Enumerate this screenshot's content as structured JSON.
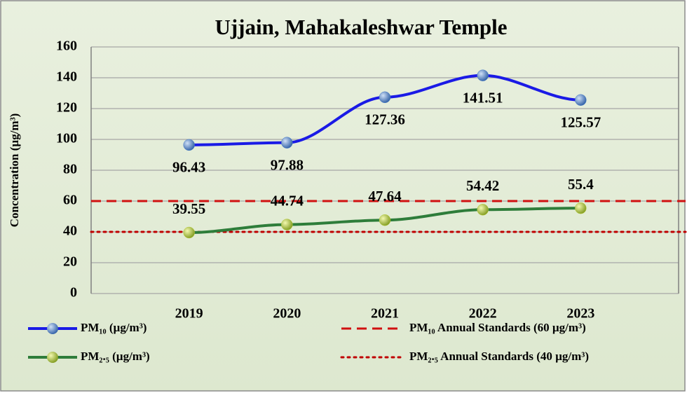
{
  "chart_data": {
    "type": "line",
    "title": "Ujjain, Mahakaleshwar Temple",
    "y_label": "Concentration (µg/m³)",
    "categories": [
      "2019",
      "2020",
      "2021",
      "2022",
      "2023"
    ],
    "series": [
      {
        "name": "PM₁₀ (µg/m³)",
        "color": "#1a1ae6",
        "marker_color": "#4a7fc8",
        "values": [
          96.43,
          97.88,
          127.36,
          141.51,
          125.57
        ]
      },
      {
        "name": "PM₂.₅ (µg/m³)",
        "color": "#2e7d3a",
        "marker_color": "#b7cc3a",
        "values": [
          39.55,
          44.74,
          47.64,
          54.42,
          55.4
        ]
      }
    ],
    "reference_lines": [
      {
        "name": "PM₁₀ Annual Standards (60 µg/m³)",
        "value": 60,
        "color": "#d01010",
        "style": "dashed"
      },
      {
        "name": "PM₂.₅ Annual Standards (40 µg/m³)",
        "value": 40,
        "color": "#c00000",
        "style": "dotted"
      }
    ],
    "ylim": [
      0,
      160
    ],
    "yticks": [
      0,
      20,
      40,
      60,
      80,
      100,
      120,
      140,
      160
    ],
    "grid": true
  }
}
